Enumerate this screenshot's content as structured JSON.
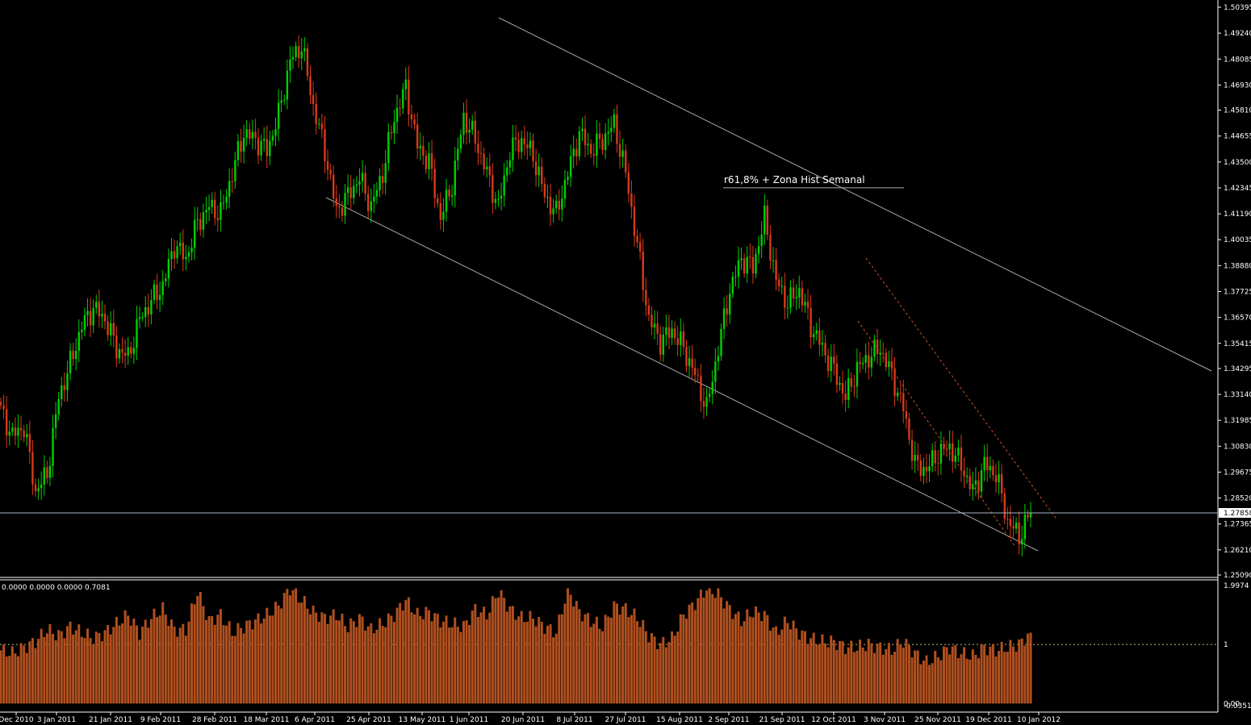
{
  "colors": {
    "background": "#000000",
    "bull_candle": "#00d000",
    "bear_candle": "#d83a1a",
    "histogram": "#b0501f",
    "channel_line": "#a8a8a8",
    "dotted_channel": "#c8502a",
    "price_line": "#a9b7c6",
    "text": "#ffffff"
  },
  "price_panel": {
    "current_price_label": "1.27858",
    "annotation": "r61,8% + Zona Hist Semanal"
  },
  "indicator_panel": {
    "header": "0.0000 0.0000 0.0000 0.7081",
    "level_label": "1"
  },
  "chart_data": [
    {
      "type": "candlestick",
      "title": "",
      "y_ticks": [
        "1.50395",
        "1.49240",
        "1.48085",
        "1.46930",
        "1.45810",
        "1.44655",
        "1.43500",
        "1.42345",
        "1.41190",
        "1.40035",
        "1.38880",
        "1.37725",
        "1.36570",
        "1.35415",
        "1.34295",
        "1.33140",
        "1.31985",
        "1.30830",
        "1.29675",
        "1.28520",
        "1.27365",
        "1.26210",
        "1.25090"
      ],
      "ylim": [
        1.2509,
        1.50395
      ],
      "x_ticks": [
        "Dec 2010",
        "3 Jan 2011",
        "21 Jan 2011",
        "9 Feb 2011",
        "28 Feb 2011",
        "18 Mar 2011",
        "6 Apr 2011",
        "25 Apr 2011",
        "13 May 2011",
        "1 Jun 2011",
        "20 Jun 2011",
        "8 Jul 2011",
        "27 Jul 2011",
        "15 Aug 2011",
        "2 Sep 2011",
        "21 Sep 2011",
        "12 Oct 2011",
        "3 Nov 2011",
        "25 Nov 2011",
        "19 Dec 2011",
        "10 Jan 2012"
      ],
      "anchor_closes": [
        1.324,
        1.313,
        1.317,
        1.288,
        1.296,
        1.33,
        1.345,
        1.362,
        1.37,
        1.365,
        1.352,
        1.348,
        1.365,
        1.373,
        1.38,
        1.398,
        1.392,
        1.408,
        1.415,
        1.412,
        1.43,
        1.448,
        1.445,
        1.44,
        1.456,
        1.48,
        1.487,
        1.46,
        1.44,
        1.413,
        1.42,
        1.428,
        1.415,
        1.43,
        1.455,
        1.468,
        1.442,
        1.435,
        1.41,
        1.425,
        1.455,
        1.445,
        1.43,
        1.415,
        1.44,
        1.445,
        1.438,
        1.42,
        1.412,
        1.43,
        1.448,
        1.44,
        1.445,
        1.452,
        1.43,
        1.398,
        1.365,
        1.355,
        1.36,
        1.352,
        1.34,
        1.325,
        1.352,
        1.378,
        1.392,
        1.388,
        1.41,
        1.382,
        1.372,
        1.378,
        1.362,
        1.352,
        1.342,
        1.33,
        1.343,
        1.348,
        1.352,
        1.34,
        1.325,
        1.3,
        1.298,
        1.305,
        1.308,
        1.3,
        1.288,
        1.3,
        1.296,
        1.275,
        1.268,
        1.279
      ],
      "last_close": 1.27858,
      "price_line": 1.27858,
      "annotation_level": 1.4235
    },
    {
      "type": "bar",
      "title": "",
      "y_ticks": [
        "1.9974",
        "1",
        "0.00",
        "-0.0351"
      ],
      "ylim": [
        -0.0351,
        1.9974
      ],
      "level_line": 1,
      "anchor_values": [
        0.9,
        0.85,
        0.95,
        1.05,
        1.25,
        1.15,
        1.3,
        1.2,
        1.1,
        1.2,
        1.35,
        1.5,
        1.2,
        1.45,
        1.6,
        1.25,
        1.25,
        1.9,
        1.4,
        1.5,
        1.2,
        1.3,
        1.4,
        1.5,
        1.65,
        1.95,
        1.75,
        1.55,
        1.45,
        1.5,
        1.3,
        1.45,
        1.25,
        1.35,
        1.5,
        1.75,
        1.5,
        1.55,
        1.4,
        1.35,
        1.3,
        1.6,
        1.5,
        1.9,
        1.6,
        1.45,
        1.45,
        1.3,
        1.2,
        1.95,
        1.55,
        1.4,
        1.3,
        1.65,
        1.6,
        1.45,
        1.15,
        1.0,
        1.1,
        1.5,
        1.7,
        1.95,
        1.85,
        1.6,
        1.4,
        1.55,
        1.5,
        1.2,
        1.4,
        1.2,
        1.1,
        1.05,
        1.05,
        0.95,
        0.95,
        1.0,
        0.95,
        0.9,
        1.05,
        0.85,
        0.7,
        0.8,
        0.95,
        0.85,
        0.8,
        0.95,
        0.9,
        0.95,
        1.0,
        1.2
      ]
    }
  ]
}
